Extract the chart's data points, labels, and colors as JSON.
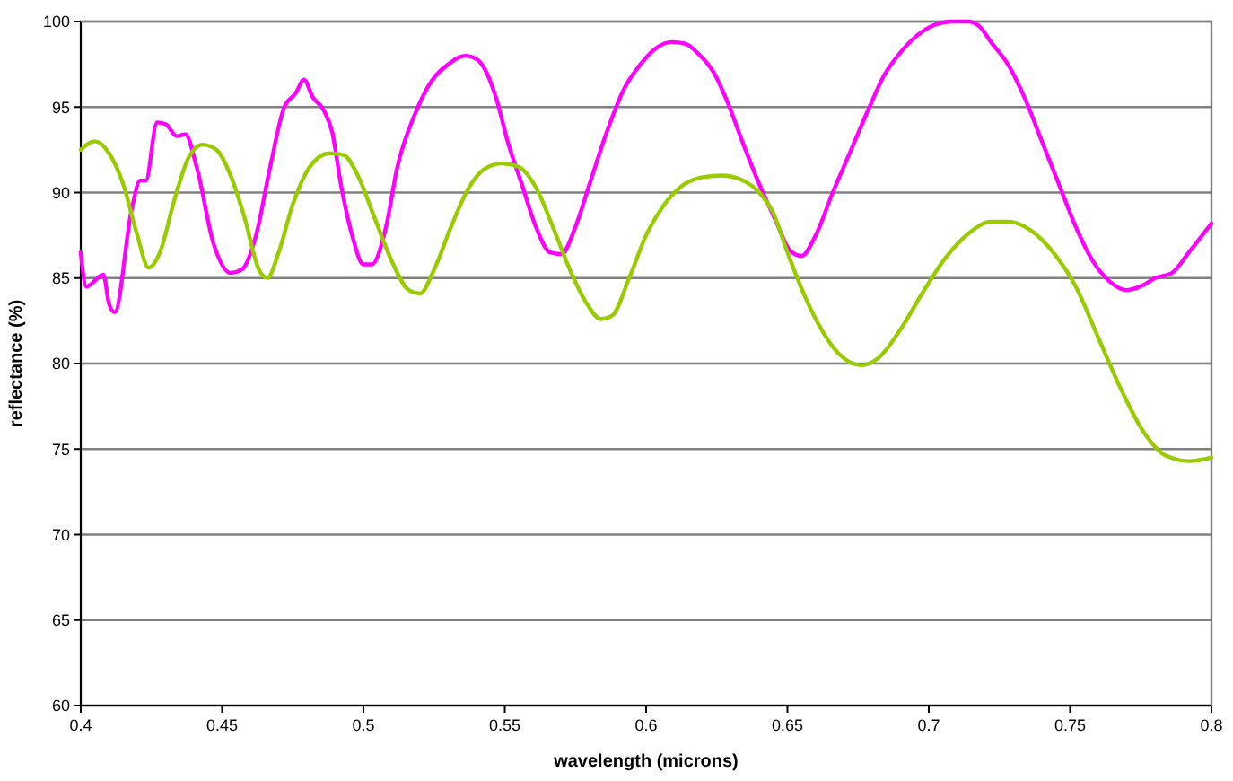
{
  "chart_data": {
    "type": "line",
    "xlabel": "wavelength (microns)",
    "ylabel": "reflectance (%)",
    "xlim": [
      0.4,
      0.8
    ],
    "xticks": [
      {
        "value": 0.4,
        "label": "0.4"
      },
      {
        "value": 0.45,
        "label": "0.45"
      },
      {
        "value": 0.5,
        "label": "0.5"
      },
      {
        "value": 0.55,
        "label": "0.55"
      },
      {
        "value": 0.6,
        "label": "0.6"
      },
      {
        "value": 0.65,
        "label": "0.65"
      },
      {
        "value": 0.7,
        "label": "0.7"
      },
      {
        "value": 0.75,
        "label": "0.75"
      },
      {
        "value": 0.8,
        "label": "0.8"
      }
    ],
    "ylim": [
      60,
      100
    ],
    "yticks": [
      60,
      65,
      70,
      75,
      80,
      85,
      90,
      95,
      100
    ],
    "grid": "y",
    "marker": "none",
    "line_style": "solid",
    "series": [
      {
        "color": "#ff00ff",
        "x": [
          0.4,
          0.402,
          0.408,
          0.41,
          0.412,
          0.418,
          0.421,
          0.423,
          0.427,
          0.43,
          0.434,
          0.437,
          0.441,
          0.447,
          0.453,
          0.457,
          0.462,
          0.467,
          0.472,
          0.476,
          0.479,
          0.482,
          0.486,
          0.489,
          0.492,
          0.496,
          0.5,
          0.503,
          0.508,
          0.512,
          0.518,
          0.524,
          0.53,
          0.536,
          0.54,
          0.543,
          0.547,
          0.551,
          0.556,
          0.561,
          0.566,
          0.57,
          0.575,
          0.58,
          0.586,
          0.592,
          0.598,
          0.604,
          0.609,
          0.614,
          0.618,
          0.624,
          0.629,
          0.634,
          0.64,
          0.646,
          0.651,
          0.655,
          0.66,
          0.666,
          0.672,
          0.679,
          0.684,
          0.69,
          0.696,
          0.702,
          0.708,
          0.714,
          0.718,
          0.722,
          0.728,
          0.734,
          0.74,
          0.746,
          0.752,
          0.758,
          0.764,
          0.77,
          0.776,
          0.78,
          0.786,
          0.792,
          0.8
        ],
        "values": [
          86.5,
          84.5,
          85.2,
          83.5,
          83,
          89,
          90.7,
          90.7,
          94.1,
          94,
          93.3,
          93.4,
          91.5,
          87,
          85.3,
          85.5,
          87.5,
          91.5,
          95,
          95.8,
          96.6,
          95.6,
          94.8,
          93.5,
          90.5,
          87.5,
          85.8,
          85.8,
          88,
          91.5,
          94.5,
          96.5,
          97.5,
          98,
          97.8,
          97.2,
          95.5,
          93,
          90.5,
          88,
          86.5,
          86.4,
          88,
          90.5,
          93.5,
          96,
          97.5,
          98.5,
          98.8,
          98.7,
          98.2,
          97,
          95.2,
          93,
          90.5,
          88.3,
          86.6,
          86.3,
          87.5,
          90,
          92.3,
          95,
          96.8,
          98.2,
          99.2,
          99.8,
          100,
          100,
          99.7,
          98.8,
          97.5,
          95.5,
          93,
          90.5,
          88,
          86,
          84.8,
          84.3,
          84.6,
          85,
          85.3,
          86.5,
          88.2
        ]
      },
      {
        "color": "#99cc00",
        "x": [
          0.4,
          0.405,
          0.41,
          0.415,
          0.42,
          0.424,
          0.428,
          0.433,
          0.438,
          0.443,
          0.448,
          0.453,
          0.458,
          0.463,
          0.466,
          0.47,
          0.475,
          0.481,
          0.488,
          0.493,
          0.498,
          0.504,
          0.51,
          0.516,
          0.52,
          0.525,
          0.531,
          0.537,
          0.543,
          0.549,
          0.555,
          0.561,
          0.567,
          0.573,
          0.579,
          0.584,
          0.588,
          0.594,
          0.6,
          0.606,
          0.612,
          0.62,
          0.627,
          0.633,
          0.64,
          0.645,
          0.65,
          0.656,
          0.662,
          0.668,
          0.676,
          0.682,
          0.69,
          0.698,
          0.706,
          0.714,
          0.722,
          0.728,
          0.736,
          0.744,
          0.752,
          0.76,
          0.768,
          0.776,
          0.784,
          0.792,
          0.8
        ],
        "values": [
          92.5,
          93,
          92.3,
          90.5,
          87.5,
          85.6,
          86.5,
          89.5,
          92,
          92.8,
          92.5,
          91,
          88.5,
          85.5,
          85,
          86.5,
          89.3,
          91.5,
          92.3,
          92.2,
          91,
          88.5,
          86,
          84.3,
          84.1,
          85.5,
          88,
          90.2,
          91.4,
          91.7,
          91.5,
          90.3,
          88,
          85.5,
          83.5,
          82.6,
          82.8,
          85,
          87.5,
          89.2,
          90.3,
          90.9,
          91,
          90.8,
          90,
          88.8,
          86.5,
          84,
          82,
          80.6,
          79.9,
          80.3,
          82,
          84.2,
          86.2,
          87.6,
          88.3,
          88.3,
          87.8,
          86.5,
          84.5,
          81.5,
          78.5,
          76,
          74.6,
          74.3,
          74.5
        ]
      }
    ]
  }
}
